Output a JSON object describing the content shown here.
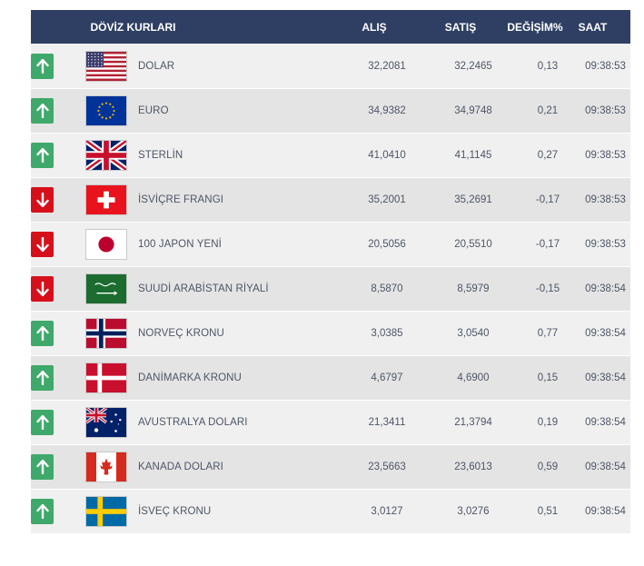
{
  "header": {
    "name": "DÖVİZ KURLARI",
    "buy": "ALIŞ",
    "sell": "SATIŞ",
    "change": "DEĞİŞİM%",
    "time": "SAAT"
  },
  "rows": [
    {
      "direction": "up",
      "flag": "usa-flag-icon",
      "name": "DOLAR",
      "buy": "32,2081",
      "sell": "32,2465",
      "change": "0,13",
      "time": "09:38:53"
    },
    {
      "direction": "up",
      "flag": "eu-flag-icon",
      "name": "EURO",
      "buy": "34,9382",
      "sell": "34,9748",
      "change": "0,21",
      "time": "09:38:53"
    },
    {
      "direction": "up",
      "flag": "uk-flag-icon",
      "name": "STERLİN",
      "buy": "41,0410",
      "sell": "41,1145",
      "change": "0,27",
      "time": "09:38:53"
    },
    {
      "direction": "down",
      "flag": "switzerland-flag-icon",
      "name": "İSVİÇRE FRANGI",
      "buy": "35,2001",
      "sell": "35,2691",
      "change": "-0,17",
      "time": "09:38:53"
    },
    {
      "direction": "down",
      "flag": "japan-flag-icon",
      "name": "100 JAPON YENİ",
      "buy": "20,5056",
      "sell": "20,5510",
      "change": "-0,17",
      "time": "09:38:53"
    },
    {
      "direction": "down",
      "flag": "saudi-flag-icon",
      "name": "SUUDİ ARABİSTAN RİYALİ",
      "buy": "8,5870",
      "sell": "8,5979",
      "change": "-0,15",
      "time": "09:38:54"
    },
    {
      "direction": "up",
      "flag": "norway-flag-icon",
      "name": "NORVEÇ KRONU",
      "buy": "3,0385",
      "sell": "3,0540",
      "change": "0,77",
      "time": "09:38:54"
    },
    {
      "direction": "up",
      "flag": "denmark-flag-icon",
      "name": "DANİMARKA KRONU",
      "buy": "4,6797",
      "sell": "4,6900",
      "change": "0,15",
      "time": "09:38:54"
    },
    {
      "direction": "up",
      "flag": "australia-flag-icon",
      "name": "AVUSTRALYA DOLARI",
      "buy": "21,3411",
      "sell": "21,3794",
      "change": "0,19",
      "time": "09:38:54"
    },
    {
      "direction": "up",
      "flag": "canada-flag-icon",
      "name": "KANADA DOLARI",
      "buy": "23,5663",
      "sell": "23,6013",
      "change": "0,59",
      "time": "09:38:54"
    },
    {
      "direction": "up",
      "flag": "sweden-flag-icon",
      "name": "İSVEÇ KRONU",
      "buy": "3,0127",
      "sell": "3,0276",
      "change": "0,51",
      "time": "09:38:54"
    }
  ],
  "colors": {
    "header_bg": "#2e3f63",
    "up": "#3fa96b",
    "down": "#d6101b"
  },
  "footer_partial_heading": "...."
}
